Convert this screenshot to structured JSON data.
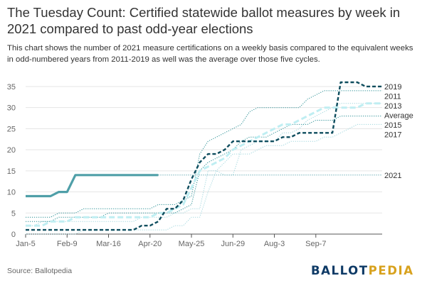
{
  "title": "The Tuesday Count: Certified statewide ballot measures by week in 2021 compared to past odd-year elections",
  "subtitle": "This chart shows the number of 2021 measure certifications on a weekly basis compared to the equivalent weeks in odd-numbered years from 2011-2019 as well was the average over those five cycles.",
  "source": "Source: Ballotpedia",
  "logo": {
    "part1": "BALLOT",
    "part2": "PEDIA"
  },
  "colors": {
    "c2021": "#4f9fa8",
    "dark": "#0e4d5e",
    "teal": "#2a8f94",
    "light": "#9fd6dd",
    "avg": "#bfeef2",
    "grid": "#e5e5e5",
    "axis": "#555555"
  },
  "chart_data": {
    "type": "line",
    "xlabel": "",
    "ylabel": "",
    "ylim": [
      0,
      36
    ],
    "yticks": [
      0,
      5,
      10,
      15,
      20,
      25,
      30,
      35
    ],
    "x_tick_labels": [
      "Jan-5",
      "Feb-9",
      "Mar-16",
      "Apr-20",
      "May-25",
      "Jun-29",
      "Aug-3",
      "Sep-7"
    ],
    "x_tick_weeks": [
      1,
      6,
      11,
      16,
      21,
      26,
      31,
      36
    ],
    "week_range": [
      1,
      44
    ],
    "series": [
      {
        "name": "2021",
        "style": "solid-thick",
        "color": "#4f9fa8",
        "x": [
          1,
          4,
          5,
          6,
          7,
          8,
          9,
          10,
          11,
          12,
          13,
          14,
          15,
          16,
          17
        ],
        "y": [
          9,
          9,
          10,
          10,
          14,
          14,
          14,
          14,
          14,
          14,
          14,
          14,
          14,
          14,
          14
        ],
        "continuation": {
          "style": "dotted",
          "value": 14,
          "to_week": 44
        }
      },
      {
        "name": "2019",
        "style": "dashed-dark",
        "color": "#0e4d5e",
        "x": [
          1,
          2,
          3,
          4,
          5,
          6,
          7,
          8,
          9,
          10,
          11,
          12,
          13,
          14,
          15,
          16,
          17,
          18,
          19,
          20,
          21,
          22,
          23,
          24,
          25,
          26,
          27,
          28,
          29,
          30,
          31,
          32,
          33,
          34,
          35,
          36,
          37,
          38,
          39,
          40,
          41,
          42,
          43,
          44
        ],
        "y": [
          1,
          1,
          1,
          1,
          1,
          1,
          1,
          1,
          1,
          1,
          1,
          1,
          1,
          1,
          2,
          2,
          3,
          6,
          6,
          8,
          13,
          17,
          19,
          19,
          20,
          22,
          22,
          22,
          22,
          22,
          22,
          23,
          23,
          24,
          24,
          24,
          24,
          24,
          36,
          36,
          36,
          35,
          35,
          35
        ]
      },
      {
        "name": "2011",
        "style": "dotted",
        "color": "#2a8f94",
        "x": [
          1,
          2,
          3,
          4,
          5,
          6,
          7,
          8,
          9,
          10,
          11,
          12,
          13,
          14,
          15,
          16,
          17,
          18,
          19,
          20,
          21,
          22,
          23,
          24,
          25,
          26,
          27,
          28,
          29,
          30,
          31,
          32,
          33,
          34,
          35,
          36,
          37,
          38,
          39,
          40,
          41,
          42,
          43,
          44
        ],
        "y": [
          4,
          4,
          4,
          4,
          5,
          5,
          5,
          6,
          6,
          6,
          6,
          6,
          6,
          6,
          6,
          6,
          7,
          7,
          7,
          8,
          9,
          19,
          22,
          23,
          24,
          25,
          26,
          29,
          30,
          30,
          30,
          30,
          30,
          30,
          32,
          33,
          34,
          34,
          34,
          34,
          34,
          34,
          34,
          34
        ]
      },
      {
        "name": "2013",
        "style": "dotted",
        "color": "#9fd6dd",
        "x": [
          1,
          2,
          3,
          4,
          5,
          6,
          7,
          8,
          9,
          10,
          11,
          12,
          13,
          14,
          15,
          16,
          17,
          18,
          19,
          20,
          21,
          22,
          23,
          24,
          25,
          26,
          27,
          28,
          29,
          30,
          31,
          32,
          33,
          34,
          35,
          36,
          37,
          38,
          39,
          40,
          41,
          42,
          43,
          44
        ],
        "y": [
          2,
          2,
          3,
          3,
          3,
          3,
          3,
          3,
          3,
          3,
          3,
          3,
          3,
          3,
          4,
          4,
          4,
          4,
          5,
          5,
          6,
          6,
          15,
          15,
          14,
          14,
          20,
          21,
          22,
          22,
          22,
          24,
          24,
          25,
          27,
          28,
          29,
          30,
          31,
          31,
          31,
          31,
          31,
          31
        ]
      },
      {
        "name": "Average",
        "style": "dashed-light",
        "color": "#bfeef2",
        "x": [
          1,
          2,
          3,
          4,
          5,
          6,
          7,
          8,
          9,
          10,
          11,
          12,
          13,
          14,
          15,
          16,
          17,
          18,
          19,
          20,
          21,
          22,
          23,
          24,
          25,
          26,
          27,
          28,
          29,
          30,
          31,
          32,
          33,
          34,
          35,
          36,
          37,
          38,
          39,
          40,
          41,
          42,
          43,
          44
        ],
        "y": [
          2,
          2,
          2,
          3,
          3,
          3,
          4,
          4,
          4,
          4,
          4,
          4,
          4,
          4,
          4,
          4,
          5,
          5,
          6,
          7,
          11,
          15,
          16,
          17,
          18,
          20,
          21,
          22,
          23,
          24,
          25,
          26,
          26,
          27,
          28,
          29,
          30,
          30,
          30,
          30,
          30,
          31,
          31,
          31
        ]
      },
      {
        "name": "2015",
        "style": "dotted",
        "color": "#2a8f94",
        "x": [
          1,
          2,
          3,
          4,
          5,
          6,
          7,
          8,
          9,
          10,
          11,
          12,
          13,
          14,
          15,
          16,
          17,
          18,
          19,
          20,
          21,
          22,
          23,
          24,
          25,
          26,
          27,
          28,
          29,
          30,
          31,
          32,
          33,
          34,
          35,
          36,
          37,
          38,
          39,
          40,
          41,
          42,
          43,
          44
        ],
        "y": [
          3,
          3,
          3,
          3,
          4,
          4,
          4,
          4,
          4,
          4,
          5,
          5,
          5,
          5,
          5,
          5,
          5,
          5,
          5,
          6,
          7,
          15,
          17,
          18,
          19,
          20,
          22,
          23,
          23,
          23,
          24,
          25,
          26,
          26,
          26,
          27,
          27,
          27,
          28,
          28,
          28,
          28,
          28,
          28
        ]
      },
      {
        "name": "2017",
        "style": "dotted",
        "color": "#9fd6dd",
        "x": [
          1,
          2,
          3,
          4,
          5,
          6,
          7,
          8,
          9,
          10,
          11,
          12,
          13,
          14,
          15,
          16,
          17,
          18,
          19,
          20,
          21,
          22,
          23,
          24,
          25,
          26,
          27,
          28,
          29,
          30,
          31,
          32,
          33,
          34,
          35,
          36,
          37,
          38,
          39,
          40,
          41,
          42,
          43,
          44
        ],
        "y": [
          0,
          0,
          0,
          0,
          0,
          0,
          0,
          1,
          1,
          1,
          1,
          1,
          1,
          1,
          1,
          1,
          1,
          1,
          2,
          2,
          4,
          4,
          10,
          15,
          17,
          19,
          19,
          19,
          20,
          21,
          21,
          21,
          22,
          22,
          22,
          22,
          23,
          23,
          24,
          25,
          26,
          26,
          26,
          26
        ]
      }
    ],
    "legend_labels": [
      "2019",
      "2011",
      "2013",
      "Average",
      "2015",
      "2017",
      "2021"
    ]
  }
}
